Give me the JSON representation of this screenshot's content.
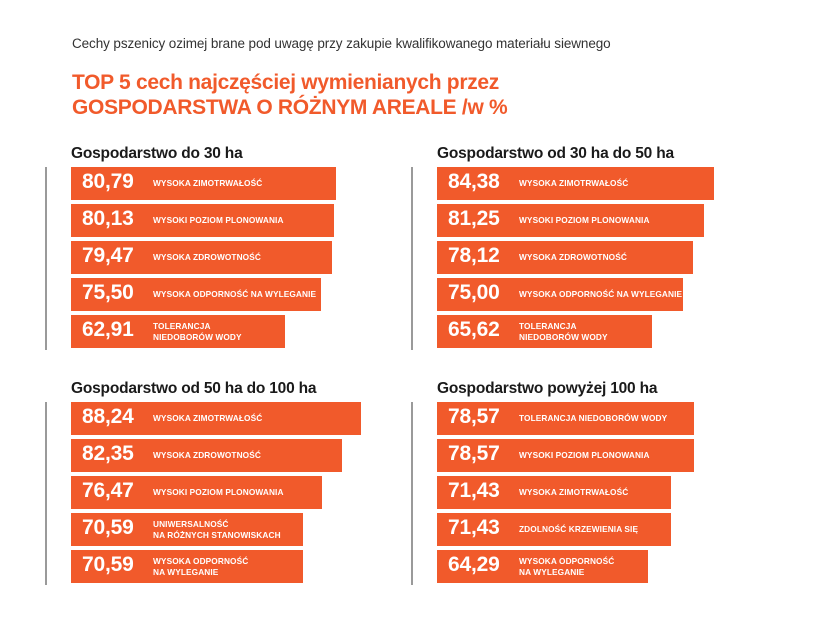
{
  "colors": {
    "accent": "#F15A2B",
    "text": "#1a1a1a",
    "axis": "#9a9a9a"
  },
  "header": {
    "subtitle": "Cechy pszenicy ozimej brane pod uwagę przy zakupie kwalifikowanego materiału siewnego",
    "title_line1": "TOP 5 cech najczęściej wymienianych przez",
    "title_line2": "GOSPODARSTWA O RÓŻNYM AREALE /w %"
  },
  "chart_data": [
    {
      "type": "bar",
      "orientation": "horizontal",
      "title": "Gospodarstwo do 30 ha",
      "categories": [
        "WYSOKA ZIMOTRWAŁOŚĆ",
        "WYSOKI POZIOM PLONOWANIA",
        "WYSOKA ZDROWOTNOŚĆ",
        "WYSOKA ODPORNOŚĆ NA WYLEGANIE",
        "TOLERANCJA\nNIEDOBORÓW WODY"
      ],
      "values": [
        80.79,
        80.13,
        79.47,
        75.5,
        62.91
      ],
      "value_labels": [
        "80,79",
        "80,13",
        "79,47",
        "75,50",
        "62,91"
      ]
    },
    {
      "type": "bar",
      "orientation": "horizontal",
      "title": "Gospodarstwo od 30 ha do 50 ha",
      "categories": [
        "WYSOKA ZIMOTRWAŁOŚĆ",
        "WYSOKI POZIOM PLONOWANIA",
        "WYSOKA ZDROWOTNOŚĆ",
        "WYSOKA ODPORNOŚĆ NA WYLEGANIE",
        "TOLERANCJA\nNIEDOBORÓW WODY"
      ],
      "values": [
        84.38,
        81.25,
        78.12,
        75.0,
        65.62
      ],
      "value_labels": [
        "84,38",
        "81,25",
        "78,12",
        "75,00",
        "65,62"
      ]
    },
    {
      "type": "bar",
      "orientation": "horizontal",
      "title": "Gospodarstwo od 50 ha do 100 ha",
      "categories": [
        "WYSOKA ZIMOTRWAŁOŚĆ",
        "WYSOKA ZDROWOTNOŚĆ",
        "WYSOKI POZIOM PLONOWANIA",
        "UNIWERSALNOŚĆ\nNA RÓŻNYCH STANOWISKACH",
        "WYSOKA ODPORNOŚĆ\nNA WYLEGANIE"
      ],
      "values": [
        88.24,
        82.35,
        76.47,
        70.59,
        70.59
      ],
      "value_labels": [
        "88,24",
        "82,35",
        "76,47",
        "70,59",
        "70,59"
      ]
    },
    {
      "type": "bar",
      "orientation": "horizontal",
      "title": "Gospodarstwo powyżej 100 ha",
      "categories": [
        "TOLERANCJA NIEDOBORÓW WODY",
        "WYSOKI POZIOM PLONOWANIA",
        "WYSOKA ZIMOTRWAŁOŚĆ",
        "ZDOLNOŚĆ KRZEWIENIA SIĘ",
        "WYSOKA ODPORNOŚĆ\nNA WYLEGANIE"
      ],
      "values": [
        78.57,
        78.57,
        71.43,
        71.43,
        64.29
      ],
      "value_labels": [
        "78,57",
        "78,57",
        "71,43",
        "71,43",
        "64,29"
      ]
    }
  ]
}
